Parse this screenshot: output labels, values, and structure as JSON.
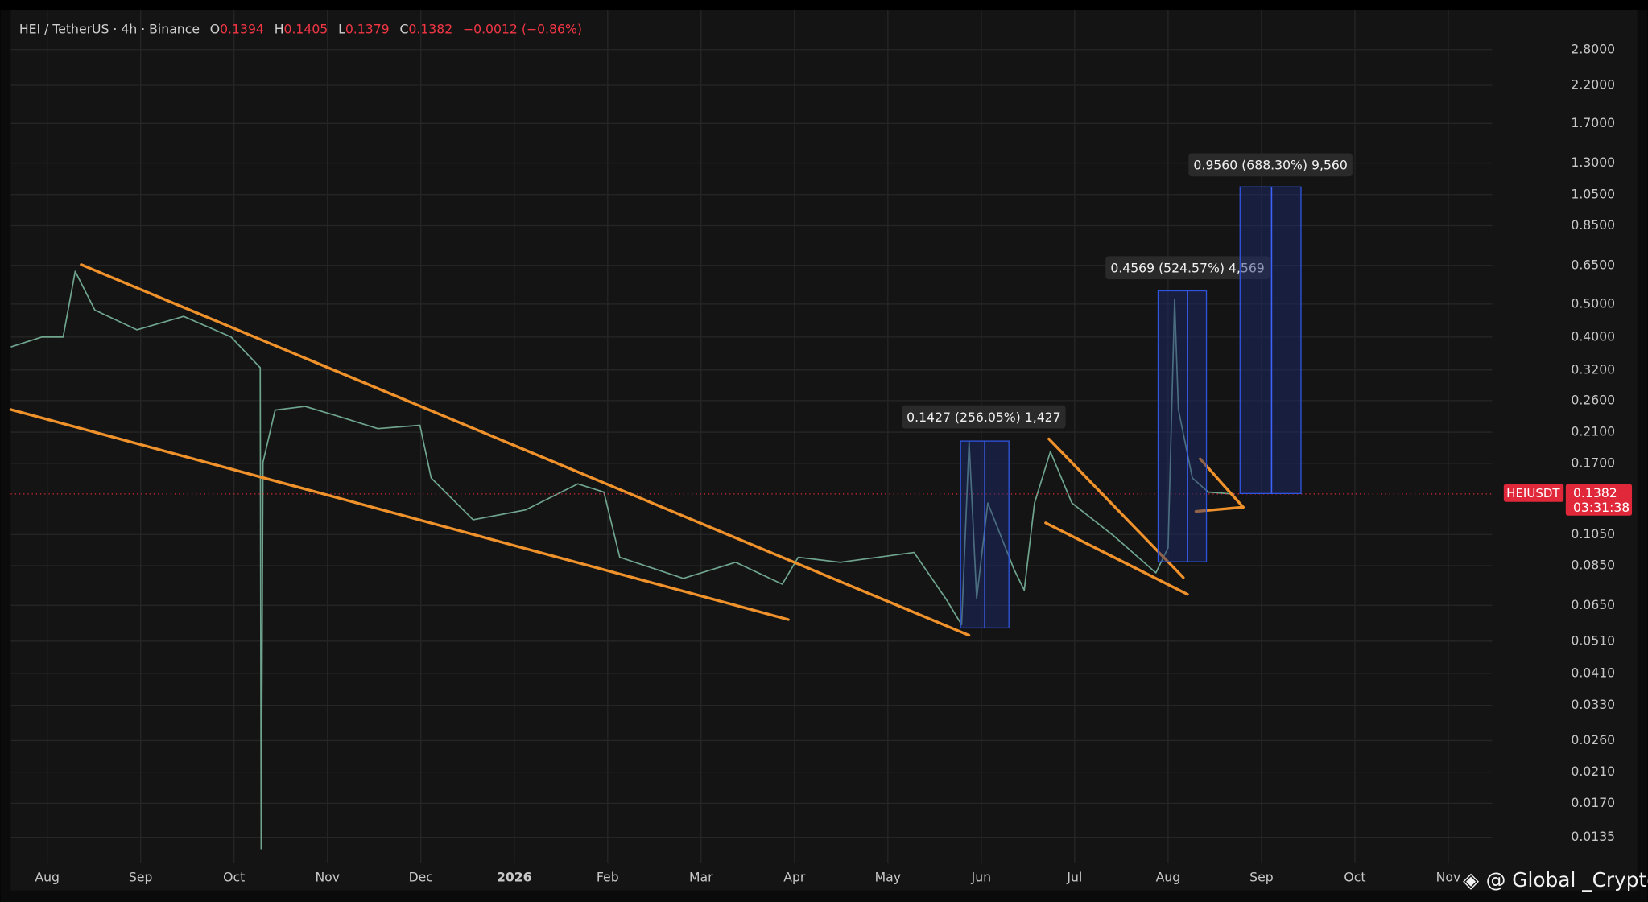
{
  "chart_data": {
    "type": "line",
    "title": "HEI / TetherUS · 4h · Binance",
    "ohlc": [
      {
        "label": "O",
        "value": 0.1394
      },
      {
        "label": "H",
        "value": 0.1405
      },
      {
        "label": "L",
        "value": 0.1379
      },
      {
        "label": "C",
        "value": 0.1382
      }
    ],
    "change": "−0.0012 (−0.86%)",
    "symbol": "HEIUSDT",
    "last_price": 0.1382,
    "countdown": "03:31:38",
    "watermark": "@ Global _Crypto",
    "log_scale": true,
    "grid": true,
    "xlim": [
      -0.39,
      15.47
    ],
    "ylim": [
      0.0115,
      3.6
    ],
    "xticks": [
      {
        "value": 0,
        "label": "Aug"
      },
      {
        "value": 1,
        "label": "Sep"
      },
      {
        "value": 2,
        "label": "Oct"
      },
      {
        "value": 3,
        "label": "Nov"
      },
      {
        "value": 4,
        "label": "Dec"
      },
      {
        "value": 5,
        "label": "2026"
      },
      {
        "value": 6,
        "label": "Feb"
      },
      {
        "value": 7,
        "label": "Mar"
      },
      {
        "value": 8,
        "label": "Apr"
      },
      {
        "value": 9,
        "label": "May"
      },
      {
        "value": 10,
        "label": "Jun"
      },
      {
        "value": 11,
        "label": "Jul"
      },
      {
        "value": 12,
        "label": "Aug"
      },
      {
        "value": 13,
        "label": "Sep"
      },
      {
        "value": 14,
        "label": "Oct"
      },
      {
        "value": 15,
        "label": "Nov"
      }
    ],
    "yticks": [
      {
        "value": 2.8,
        "label": "2.8000"
      },
      {
        "value": 2.2,
        "label": "2.2000"
      },
      {
        "value": 1.7,
        "label": "1.7000"
      },
      {
        "value": 1.3,
        "label": "1.3000"
      },
      {
        "value": 1.05,
        "label": "1.0500"
      },
      {
        "value": 0.85,
        "label": "0.8500"
      },
      {
        "value": 0.65,
        "label": "0.6500"
      },
      {
        "value": 0.5,
        "label": "0.5000"
      },
      {
        "value": 0.4,
        "label": "0.4000"
      },
      {
        "value": 0.32,
        "label": "0.3200"
      },
      {
        "value": 0.26,
        "label": "0.2600"
      },
      {
        "value": 0.21,
        "label": "0.2100"
      },
      {
        "value": 0.17,
        "label": "0.1700"
      },
      {
        "value": 0.105,
        "label": "0.1050"
      },
      {
        "value": 0.085,
        "label": "0.0850"
      },
      {
        "value": 0.065,
        "label": "0.0650"
      },
      {
        "value": 0.051,
        "label": "0.0510"
      },
      {
        "value": 0.041,
        "label": "0.0410"
      },
      {
        "value": 0.033,
        "label": "0.0330"
      },
      {
        "value": 0.026,
        "label": "0.0260"
      },
      {
        "value": 0.021,
        "label": "0.0210"
      },
      {
        "value": 0.017,
        "label": "0.0170"
      },
      {
        "value": 0.0135,
        "label": "0.0135"
      }
    ],
    "series": [
      {
        "color": "#6fa58f",
        "x": [
          -0.39,
          -0.06,
          0.17,
          0.3,
          0.51,
          0.96,
          1.46,
          1.97,
          2.28,
          2.29,
          2.31,
          2.44,
          2.76,
          3.09,
          3.54,
          3.99,
          4.11,
          4.56,
          5.12,
          5.68,
          5.96,
          6.13,
          6.81,
          7.37,
          7.87,
          8.04,
          8.49,
          9.28,
          9.62,
          9.79,
          9.87,
          9.95,
          10.07,
          10.35,
          10.46,
          10.57,
          10.74,
          10.97,
          11.42,
          11.87,
          12.0,
          12.07,
          12.11,
          12.26,
          12.43,
          12.71
        ],
        "values": [
          0.374,
          0.4,
          0.4,
          0.624,
          0.48,
          0.42,
          0.46,
          0.4,
          0.325,
          0.0125,
          0.171,
          0.244,
          0.25,
          0.235,
          0.215,
          0.22,
          0.154,
          0.116,
          0.124,
          0.148,
          0.14,
          0.09,
          0.078,
          0.087,
          0.075,
          0.09,
          0.087,
          0.093,
          0.068,
          0.057,
          0.197,
          0.068,
          0.13,
          0.083,
          0.072,
          0.13,
          0.184,
          0.13,
          0.104,
          0.081,
          0.096,
          0.515,
          0.245,
          0.154,
          0.14,
          0.138
        ]
      }
    ],
    "annotations": [
      {
        "text": "0.1427 (256.05%) 1,427"
      },
      {
        "text": "0.4569 (524.57%) 4,569"
      },
      {
        "text": "0.9560 (688.30%) 9,560"
      }
    ]
  }
}
